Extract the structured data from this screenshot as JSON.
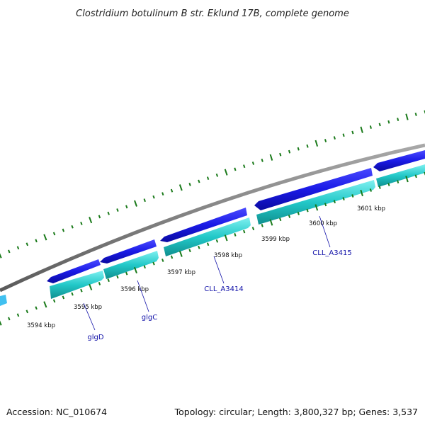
{
  "title": "Clostridium botulinum B str. Eklund 17B, complete genome",
  "footer": {
    "accession": "Accession: NC_010674",
    "summary": "Topology: circular; Length: 3,800,327 bp; Genes: 3,537"
  },
  "colors": {
    "backbone": "#7a7a7a",
    "forward_gene": "#1a1ae6",
    "reverse_gene": "#22c8c8",
    "gc_skew_ticks": "#1a7a1a",
    "gene_label": "#1010a8",
    "fragment_left": "#40c0f0"
  },
  "kbp_ticks": [
    "3594 kbp",
    "3595 kbp",
    "3596 kbp",
    "3597 kbp",
    "3598 kbp",
    "3599 kbp",
    "3600 kbp",
    "3601 kbp"
  ],
  "gene_labels": [
    "glgD",
    "glgC",
    "CLL_A3414",
    "CLL_A3415"
  ]
}
